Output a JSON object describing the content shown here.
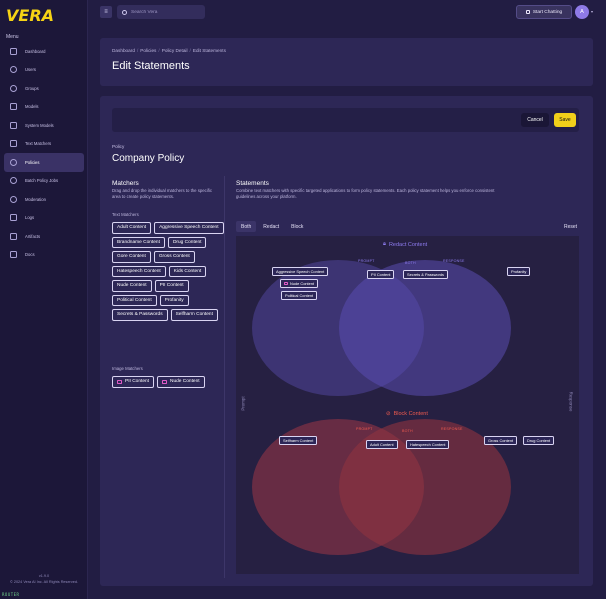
{
  "app": {
    "logo": "VERA",
    "menu_title": "Menu",
    "version": "v1.9.0",
    "copyright": "© 2024 Vera AI Inc. All Rights Reserved.",
    "router_tag": "ROUTER"
  },
  "sidebar": {
    "items": [
      {
        "label": "Dashboard",
        "icon": "grid-icon",
        "active": false
      },
      {
        "label": "Users",
        "icon": "user-icon",
        "active": false
      },
      {
        "label": "Groups",
        "icon": "users-icon",
        "active": false
      },
      {
        "label": "Models",
        "icon": "cube-icon",
        "active": false
      },
      {
        "label": "System Models",
        "icon": "system-icon",
        "active": false
      },
      {
        "label": "Text Matchers",
        "icon": "document-icon",
        "active": false
      },
      {
        "label": "Policies",
        "icon": "shield-icon",
        "active": true
      },
      {
        "label": "Batch Policy Jobs",
        "icon": "refresh-icon",
        "active": false
      },
      {
        "label": "Moderation",
        "icon": "moderation-icon",
        "active": false
      },
      {
        "label": "Logs",
        "icon": "logs-icon",
        "active": false
      },
      {
        "label": "Artifacts",
        "icon": "artifact-icon",
        "active": false
      },
      {
        "label": "Docs",
        "icon": "book-icon",
        "active": false
      }
    ]
  },
  "topbar": {
    "search_placeholder": "Search Vera",
    "start_chatting": "Start Chatting",
    "avatar_initial": "A"
  },
  "header": {
    "breadcrumbs": [
      "Dashboard",
      "Policies",
      "Policy Detail",
      "Edit Statements"
    ],
    "title": "Edit Statements"
  },
  "actions": {
    "cancel": "Cancel",
    "save": "Save"
  },
  "policy": {
    "label": "Policy",
    "name": "Company Policy"
  },
  "matchers": {
    "title": "Matchers",
    "description": "Drag and drop the individual matchers to the specific area to create policy statements.",
    "text_label": "Text Matchers",
    "text_matchers": [
      "Adult Content",
      "Aggressive Speech Content",
      "Brandname Content",
      "Drug Content",
      "Gore Content",
      "Gross Content",
      "Hatespeech Content",
      "Kids Content",
      "Nude Content",
      "PII Content",
      "Political Content",
      "Profanity",
      "Secrets & Passwords",
      "Selfharm Content"
    ],
    "image_label": "Image Matchers",
    "image_matchers": [
      "PII Content",
      "Nude Content"
    ]
  },
  "statements": {
    "title": "Statements",
    "description": "Combine text matchers with specific targeted applications to form policy statements. Each policy statement helps you enforce consistent guidelines across your platform.",
    "tabs": [
      "Both",
      "Redact",
      "Block"
    ],
    "active_tab": "Both",
    "reset": "Reset",
    "axis_left": "Prompt",
    "axis_right": "Response",
    "redact": {
      "title": "Redact Content",
      "prompt_label": "PROMPT",
      "both_label": "BOTH",
      "response_label": "RESPONSE",
      "prompt": [
        "Aggressive Speech Content",
        "Nude Content",
        "Political Content"
      ],
      "both": [
        "PII Content",
        "Secrets & Passwords"
      ],
      "response": [
        "Profanity"
      ],
      "color": "#7d6ce0"
    },
    "block": {
      "title": "Block Content",
      "prompt_label": "PROMPT",
      "both_label": "BOTH",
      "response_label": "RESPONSE",
      "prompt": [
        "Selfharm Content"
      ],
      "both": [
        "Adult Content",
        "Hatespeech Content"
      ],
      "response": [
        "Gross Content",
        "Drug Content"
      ],
      "color": "#e0473f"
    }
  }
}
